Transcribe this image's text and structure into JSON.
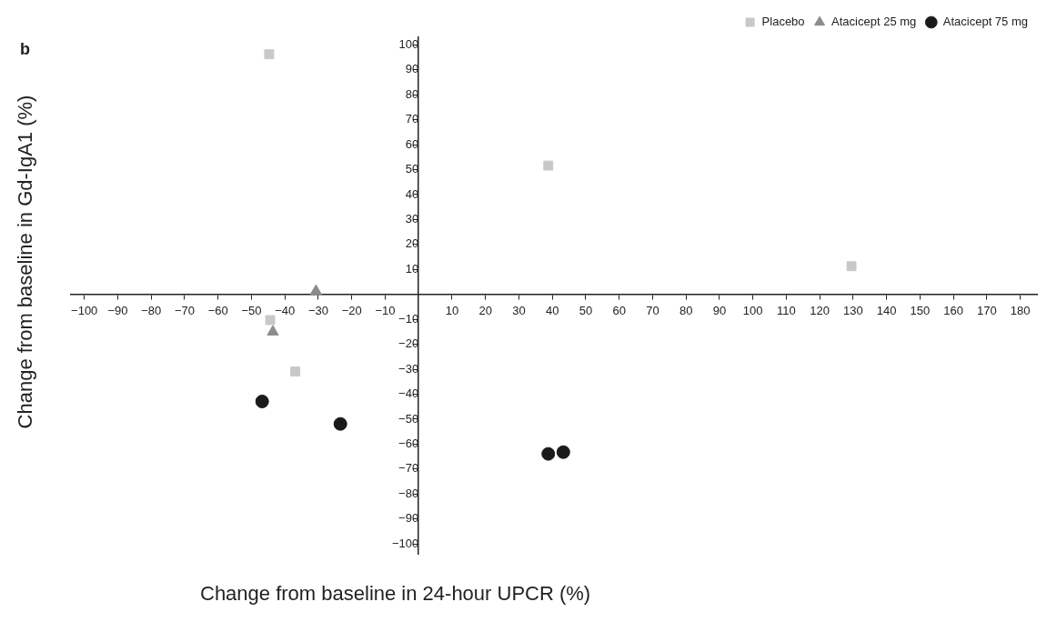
{
  "chart_data": {
    "type": "scatter",
    "xlabel": "Change from baseline in 24-hour UPCR (%)",
    "ylabel": "Change from baseline in Gd-IgA1 (%)",
    "annotations": [
      "b"
    ],
    "xlim": [
      -104,
      185
    ],
    "ylim": [
      -104,
      103
    ],
    "xticks": [
      -100,
      -90,
      -80,
      -70,
      -60,
      -50,
      -40,
      -30,
      -20,
      -10,
      10,
      20,
      30,
      40,
      50,
      60,
      70,
      80,
      90,
      100,
      110,
      120,
      130,
      140,
      150,
      160,
      170,
      180
    ],
    "yticks": [
      -100,
      -90,
      -80,
      -70,
      -60,
      -50,
      -40,
      -30,
      -20,
      -10,
      10,
      20,
      30,
      40,
      50,
      60,
      70,
      80,
      90,
      100
    ],
    "grid": false,
    "legend": "top right",
    "series": [
      {
        "name": "Placebo",
        "color": "#c8c8c8",
        "marker": "square",
        "x": [
          -44.7,
          38.8,
          129.5,
          -44.4,
          -36.9
        ],
        "values": [
          96.2,
          51.6,
          11.3,
          -10.3,
          -30.9
        ]
      },
      {
        "name": "Atacicept 25 mg",
        "color": "#8c8c8c",
        "marker": "triangle",
        "x": [
          -30.7,
          -43.6
        ],
        "values": [
          1.3,
          -15
        ]
      },
      {
        "name": "Atacicept 75 mg",
        "color": "#1a1a1a",
        "marker": "circle",
        "x": [
          -46.8,
          -23.4,
          38.8,
          43.3
        ],
        "values": [
          -42.9,
          -51.9,
          -63.9,
          -63.2
        ]
      }
    ]
  }
}
